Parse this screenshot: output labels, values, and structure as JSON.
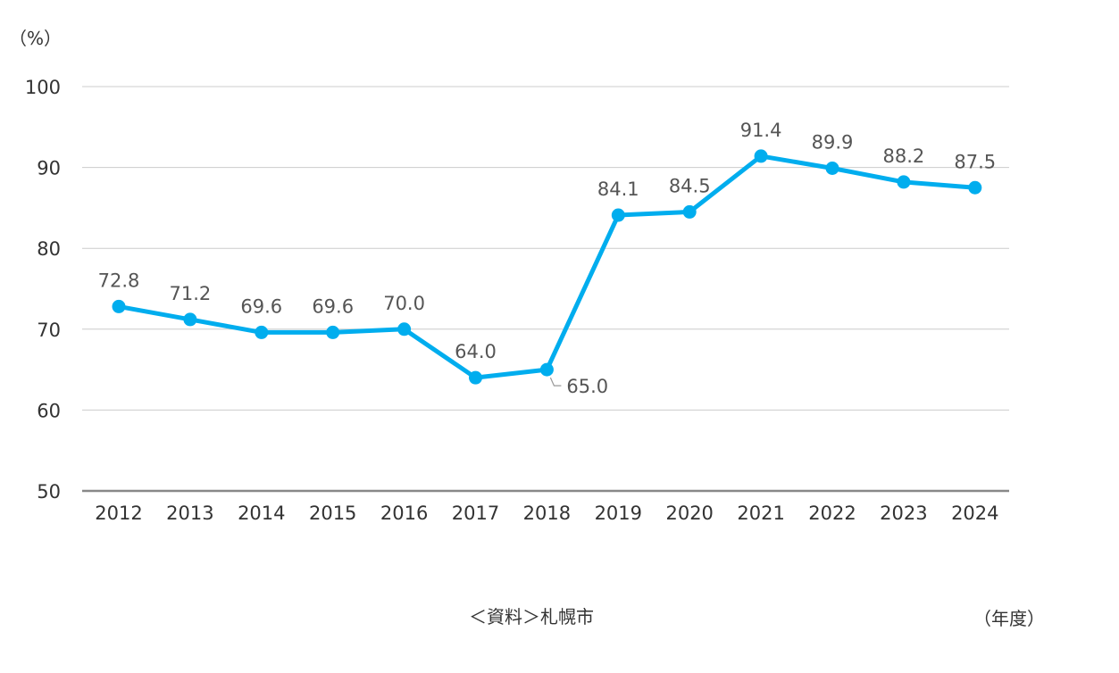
{
  "chart_data": {
    "type": "line",
    "y_unit_label": "（%）",
    "x_unit_label": "（年度）",
    "source": "＜資料＞札幌市",
    "categories": [
      "2012",
      "2013",
      "2014",
      "2015",
      "2016",
      "2017",
      "2018",
      "2019",
      "2020",
      "2021",
      "2022",
      "2023",
      "2024"
    ],
    "series": [
      {
        "values": [
          72.8,
          71.2,
          69.6,
          69.6,
          70.0,
          64.0,
          65.0,
          84.1,
          84.5,
          91.4,
          89.9,
          88.2,
          87.5
        ],
        "value_labels": [
          "72.8",
          "71.2",
          "69.6",
          "69.6",
          "70.0",
          "64.0",
          "65.0",
          "84.1",
          "84.5",
          "91.4",
          "89.9",
          "88.2",
          "87.5"
        ],
        "color": "#00ADEE"
      }
    ],
    "ylim": [
      50,
      100
    ],
    "yticks": [
      50,
      60,
      70,
      80,
      90,
      100
    ],
    "grid": true,
    "axis_color": "#888888",
    "grid_color": "#cccccc"
  }
}
